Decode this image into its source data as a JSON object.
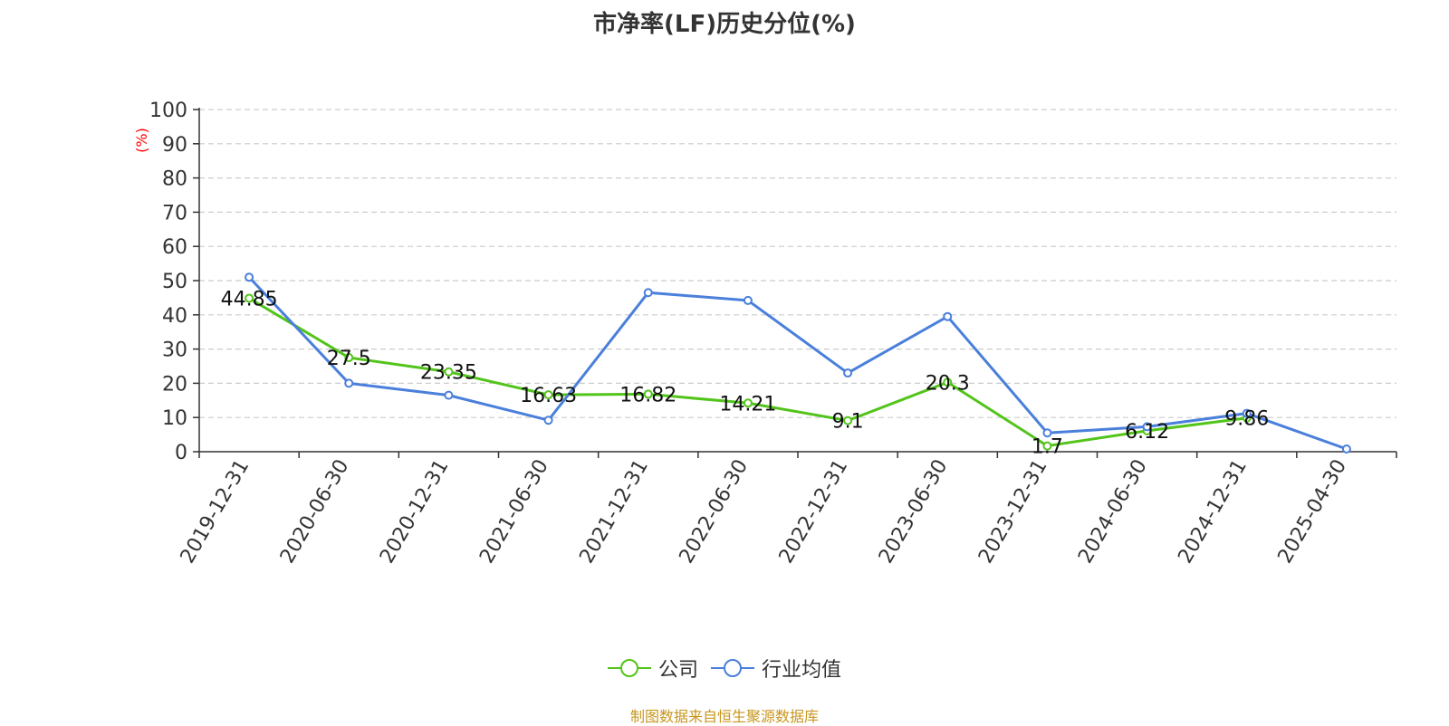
{
  "title": "市净率(LF)历史分位(%)",
  "source_text": "制图数据来自恒生聚源数据库",
  "colors": {
    "company": "#52c41a",
    "industry": "#4a7fdb",
    "unit_label": "#ff0000",
    "source_text": "#c8961e",
    "grid": "#cccccc",
    "axis": "#333333"
  },
  "chart_data": {
    "type": "line",
    "title": "市净率(LF)历史分位(%)",
    "ylabel": "(%)",
    "xlabel": "",
    "ylim": [
      0,
      100
    ],
    "yticks": [
      0,
      10,
      20,
      30,
      40,
      50,
      60,
      70,
      80,
      90,
      100
    ],
    "grid": true,
    "legend_position": "bottom",
    "categories": [
      "2019-12-31",
      "2020-06-30",
      "2020-12-31",
      "2021-06-30",
      "2021-12-31",
      "2022-06-30",
      "2022-12-31",
      "2023-06-30",
      "2023-12-31",
      "2024-06-30",
      "2024-12-31",
      "2025-04-30"
    ],
    "series": [
      {
        "name": "公司",
        "values": [
          44.85,
          27.5,
          23.35,
          16.63,
          16.82,
          14.21,
          9.1,
          20.3,
          1.7,
          6.12,
          9.86,
          null
        ],
        "labels": [
          "44.85",
          "27.5",
          "23.35",
          "16.63",
          "16.82",
          "14.21",
          "9.1",
          "20.3",
          "1.7",
          "6.12",
          "9.86",
          ""
        ]
      },
      {
        "name": "行业均值",
        "values": [
          51,
          20,
          16.5,
          9.2,
          46.5,
          44.2,
          23,
          39.5,
          5.5,
          7.3,
          11.2,
          0.8
        ]
      }
    ]
  }
}
